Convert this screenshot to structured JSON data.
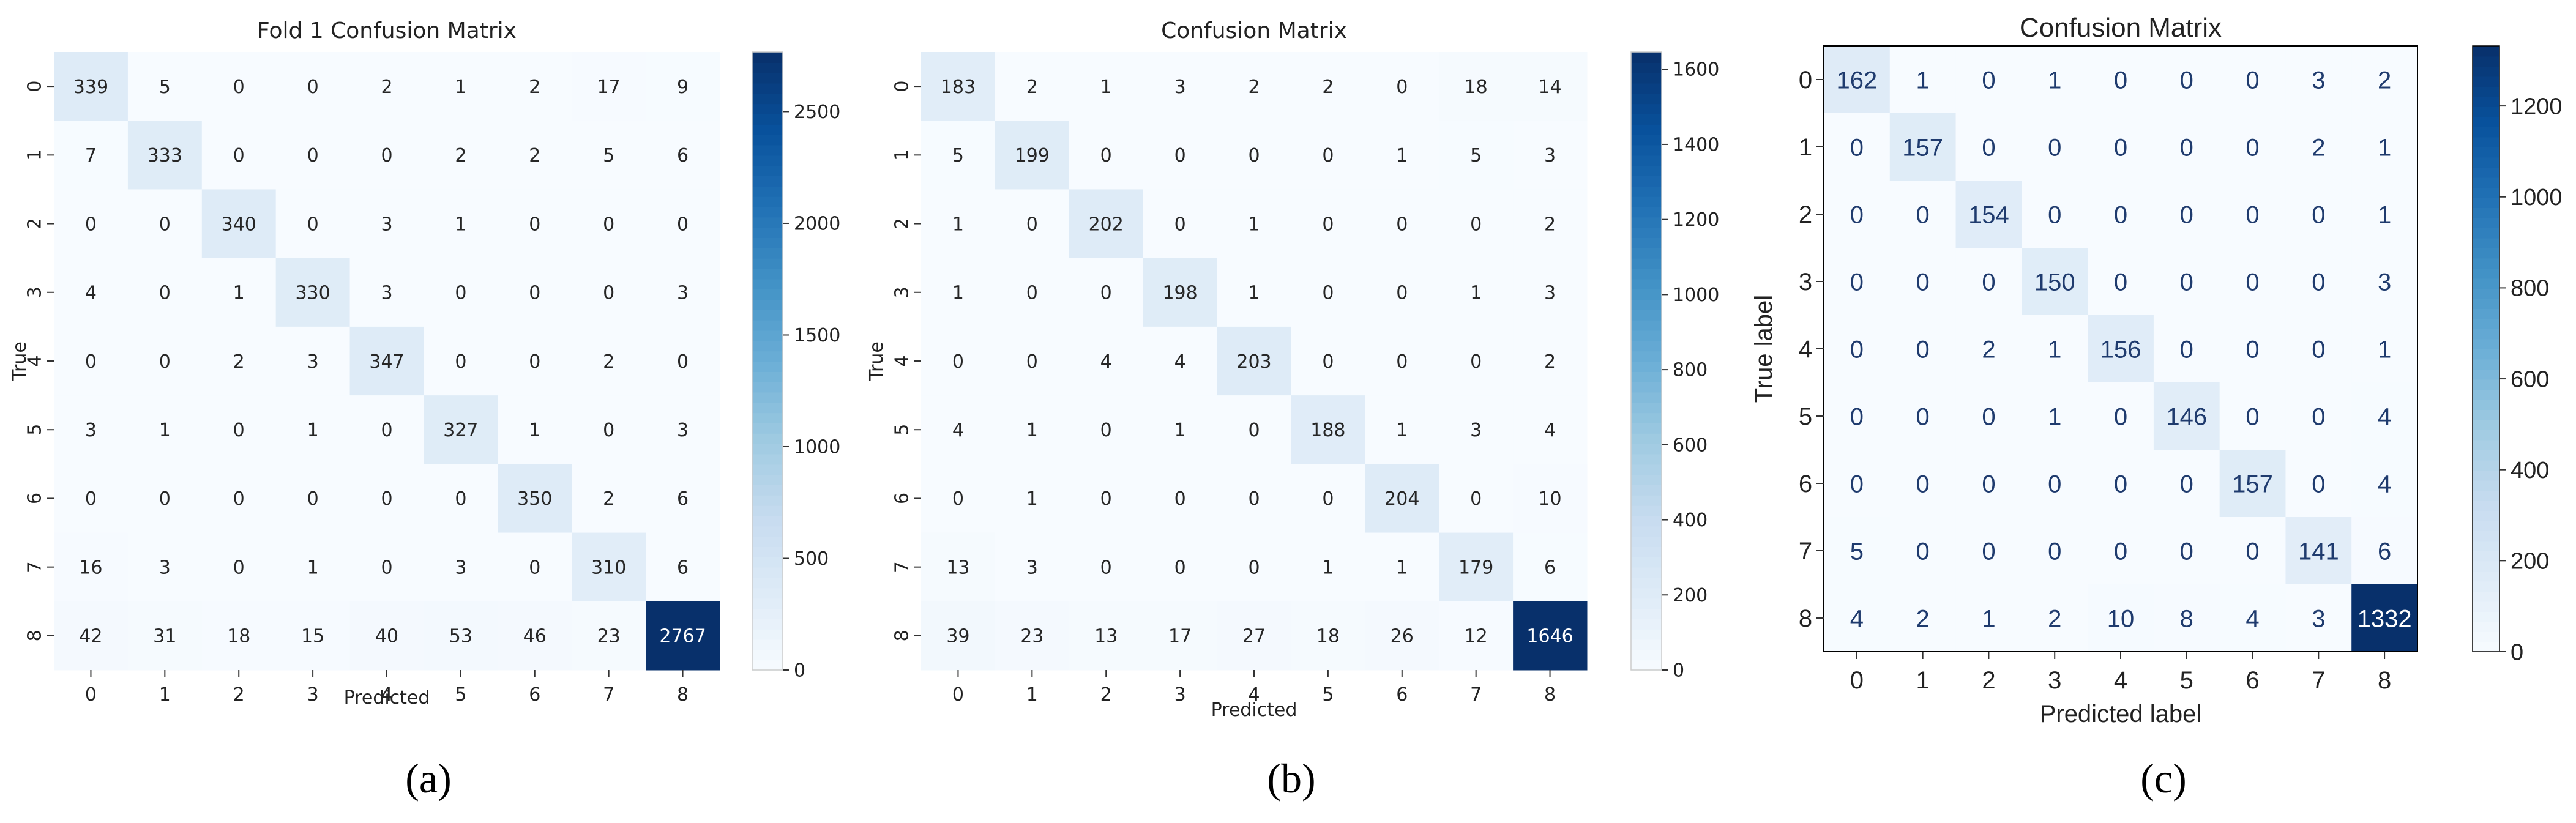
{
  "chart_data": [
    {
      "type": "heatmap",
      "title": "Fold 1 Confusion Matrix",
      "xlabel": "Predicted",
      "ylabel": "True",
      "x_categories": [
        "0",
        "1",
        "2",
        "3",
        "4",
        "5",
        "6",
        "7",
        "8"
      ],
      "y_categories": [
        "0",
        "1",
        "2",
        "3",
        "4",
        "5",
        "6",
        "7",
        "8"
      ],
      "values": [
        [
          339,
          5,
          0,
          0,
          2,
          1,
          2,
          17,
          9
        ],
        [
          7,
          333,
          0,
          0,
          0,
          2,
          2,
          5,
          6
        ],
        [
          0,
          0,
          340,
          0,
          3,
          1,
          0,
          0,
          0
        ],
        [
          4,
          0,
          1,
          330,
          3,
          0,
          0,
          0,
          3
        ],
        [
          0,
          0,
          2,
          3,
          347,
          0,
          0,
          2,
          0
        ],
        [
          3,
          1,
          0,
          1,
          0,
          327,
          1,
          0,
          3
        ],
        [
          0,
          0,
          0,
          0,
          0,
          0,
          350,
          2,
          6
        ],
        [
          16,
          3,
          0,
          1,
          0,
          3,
          0,
          310,
          6
        ],
        [
          42,
          31,
          18,
          15,
          40,
          53,
          46,
          23,
          2767
        ]
      ],
      "colorbar_ticks": [
        0,
        500,
        1000,
        1500,
        2000,
        2500
      ],
      "color_range": [
        0,
        2767
      ],
      "colormap": "Blues",
      "caption": "(a)"
    },
    {
      "type": "heatmap",
      "title": "Confusion Matrix",
      "xlabel": "Predicted",
      "ylabel": "True",
      "x_categories": [
        "0",
        "1",
        "2",
        "3",
        "4",
        "5",
        "6",
        "7",
        "8"
      ],
      "y_categories": [
        "0",
        "1",
        "2",
        "3",
        "4",
        "5",
        "6",
        "7",
        "8"
      ],
      "values": [
        [
          183,
          2,
          1,
          3,
          2,
          2,
          0,
          18,
          14
        ],
        [
          5,
          199,
          0,
          0,
          0,
          0,
          1,
          5,
          3
        ],
        [
          1,
          0,
          202,
          0,
          1,
          0,
          0,
          0,
          2
        ],
        [
          1,
          0,
          0,
          198,
          1,
          0,
          0,
          1,
          3
        ],
        [
          0,
          0,
          4,
          4,
          203,
          0,
          0,
          0,
          2
        ],
        [
          4,
          1,
          0,
          1,
          0,
          188,
          1,
          3,
          4
        ],
        [
          0,
          1,
          0,
          0,
          0,
          0,
          204,
          0,
          10
        ],
        [
          13,
          3,
          0,
          0,
          0,
          1,
          1,
          179,
          6
        ],
        [
          39,
          23,
          13,
          17,
          27,
          18,
          26,
          12,
          1646
        ]
      ],
      "colorbar_ticks": [
        0,
        200,
        400,
        600,
        800,
        1000,
        1200,
        1400,
        1600
      ],
      "color_range": [
        0,
        1646
      ],
      "colormap": "Blues",
      "caption": "(b)"
    },
    {
      "type": "heatmap",
      "title": "Confusion Matrix",
      "xlabel": "Predicted label",
      "ylabel": "True label",
      "x_categories": [
        "0",
        "1",
        "2",
        "3",
        "4",
        "5",
        "6",
        "7",
        "8"
      ],
      "y_categories": [
        "0",
        "1",
        "2",
        "3",
        "4",
        "5",
        "6",
        "7",
        "8"
      ],
      "values": [
        [
          162,
          1,
          0,
          1,
          0,
          0,
          0,
          3,
          2
        ],
        [
          0,
          157,
          0,
          0,
          0,
          0,
          0,
          2,
          1
        ],
        [
          0,
          0,
          154,
          0,
          0,
          0,
          0,
          0,
          1
        ],
        [
          0,
          0,
          0,
          150,
          0,
          0,
          0,
          0,
          3
        ],
        [
          0,
          0,
          2,
          1,
          156,
          0,
          0,
          0,
          1
        ],
        [
          0,
          0,
          0,
          1,
          0,
          146,
          0,
          0,
          4
        ],
        [
          0,
          0,
          0,
          0,
          0,
          0,
          157,
          0,
          4
        ],
        [
          5,
          0,
          0,
          0,
          0,
          0,
          0,
          141,
          6
        ],
        [
          4,
          2,
          1,
          2,
          10,
          8,
          4,
          3,
          1332
        ]
      ],
      "colorbar_ticks": [
        0,
        200,
        400,
        600,
        800,
        1000,
        1200
      ],
      "color_range": [
        0,
        1332
      ],
      "colormap": "Blues",
      "caption": "(c)"
    }
  ]
}
